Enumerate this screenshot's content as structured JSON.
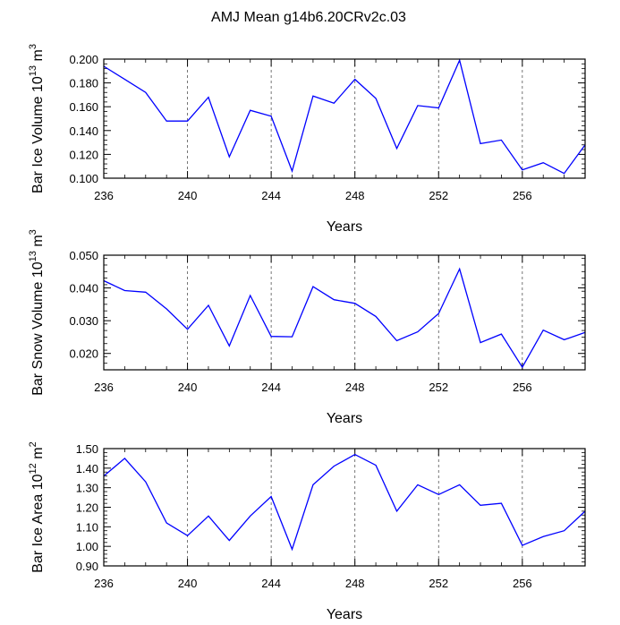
{
  "title": "AMJ Mean g14b6.20CRv2c.03",
  "chart_data": [
    {
      "type": "line",
      "ylabel": "Bar Ice Volume",
      "yunit_exp": "13",
      "yunit_base": "m",
      "yunit_pow": "3",
      "xlabel": "Years",
      "xlim": [
        236,
        259
      ],
      "ylim": [
        0.1,
        0.2
      ],
      "yticks": [
        0.1,
        0.12,
        0.14,
        0.16,
        0.18,
        0.2
      ],
      "ytick_labels": [
        "0.100",
        "0.120",
        "0.140",
        "0.160",
        "0.180",
        "0.200"
      ],
      "xticks": [
        236,
        240,
        244,
        248,
        252,
        256
      ],
      "xtick_labels": [
        "236",
        "240",
        "244",
        "248",
        "252",
        "256"
      ],
      "grid_x": [
        240,
        244,
        248,
        252,
        256
      ],
      "series": [
        {
          "name": "Bar Ice Volume",
          "color": "#0000ff",
          "x": [
            236,
            237,
            238,
            239,
            240,
            241,
            242,
            243,
            244,
            245,
            246,
            247,
            248,
            249,
            250,
            251,
            252,
            253,
            254,
            255,
            256,
            257,
            258,
            259
          ],
          "values": [
            0.194,
            0.183,
            0.172,
            0.148,
            0.148,
            0.168,
            0.118,
            0.157,
            0.152,
            0.106,
            0.169,
            0.163,
            0.183,
            0.167,
            0.125,
            0.161,
            0.159,
            0.199,
            0.129,
            0.132,
            0.107,
            0.113,
            0.104,
            0.128
          ]
        }
      ]
    },
    {
      "type": "line",
      "ylabel": "Bar Snow Volume",
      "yunit_exp": "13",
      "yunit_base": "m",
      "yunit_pow": "3",
      "xlabel": "Years",
      "xlim": [
        236,
        259
      ],
      "ylim": [
        0.015,
        0.05
      ],
      "yticks": [
        0.02,
        0.03,
        0.04,
        0.05
      ],
      "ytick_labels": [
        "0.020",
        "0.030",
        "0.040",
        "0.050"
      ],
      "xticks": [
        236,
        240,
        244,
        248,
        252,
        256
      ],
      "xtick_labels": [
        "236",
        "240",
        "244",
        "248",
        "252",
        "256"
      ],
      "grid_x": [
        240,
        244,
        248,
        252,
        256
      ],
      "series": [
        {
          "name": "Bar Snow Volume",
          "color": "#0000ff",
          "x": [
            236,
            237,
            238,
            239,
            240,
            241,
            242,
            243,
            244,
            245,
            246,
            247,
            248,
            249,
            250,
            251,
            252,
            253,
            254,
            255,
            256,
            257,
            258,
            259
          ],
          "values": [
            0.0422,
            0.0392,
            0.0387,
            0.0336,
            0.0274,
            0.0347,
            0.0223,
            0.0377,
            0.0252,
            0.0251,
            0.0404,
            0.0364,
            0.0353,
            0.0313,
            0.0239,
            0.0266,
            0.0322,
            0.0458,
            0.0233,
            0.0259,
            0.0158,
            0.0271,
            0.0242,
            0.0264
          ]
        }
      ]
    },
    {
      "type": "line",
      "ylabel": "Bar Ice Area",
      "yunit_exp": "12",
      "yunit_base": "m",
      "yunit_pow": "2",
      "xlabel": "Years",
      "xlim": [
        236,
        259
      ],
      "ylim": [
        0.9,
        1.5
      ],
      "yticks": [
        0.9,
        1.0,
        1.1,
        1.2,
        1.3,
        1.4,
        1.5
      ],
      "ytick_labels": [
        "0.90",
        "1.00",
        "1.10",
        "1.20",
        "1.30",
        "1.40",
        "1.50"
      ],
      "xticks": [
        236,
        240,
        244,
        248,
        252,
        256
      ],
      "xtick_labels": [
        "236",
        "240",
        "244",
        "248",
        "252",
        "256"
      ],
      "grid_x": [
        240,
        244,
        248,
        252,
        256
      ],
      "series": [
        {
          "name": "Bar Ice Area",
          "color": "#0000ff",
          "x": [
            236,
            237,
            238,
            239,
            240,
            241,
            242,
            243,
            244,
            245,
            246,
            247,
            248,
            249,
            250,
            251,
            252,
            253,
            254,
            255,
            256,
            257,
            258,
            259
          ],
          "values": [
            1.36,
            1.45,
            1.33,
            1.12,
            1.055,
            1.155,
            1.03,
            1.155,
            1.255,
            0.985,
            1.315,
            1.41,
            1.47,
            1.415,
            1.18,
            1.315,
            1.265,
            1.315,
            1.21,
            1.22,
            1.005,
            1.05,
            1.08,
            1.18
          ]
        }
      ]
    }
  ]
}
